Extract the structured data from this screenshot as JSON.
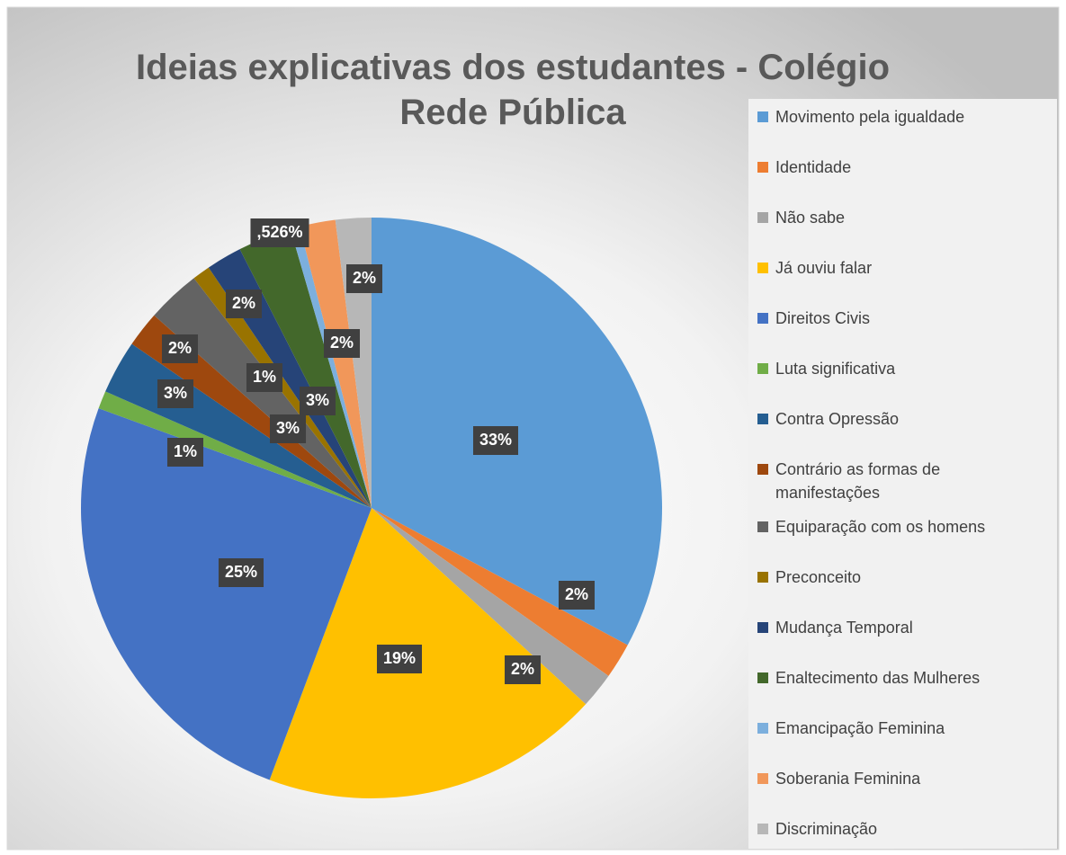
{
  "chart_data": {
    "type": "pie",
    "title": "Ideias explicativas dos estudantes - Colégio Rede Pública",
    "categories": [
      "Movimento pela igualdade",
      "Identidade",
      "Não sabe",
      "Já ouviu falar",
      "Direitos Civis",
      "Luta significativa",
      "Contra Opressão",
      "Contrário as formas de manifestações",
      "Equiparação com os homens",
      "Preconceito",
      "Mudança Temporal",
      "Enaltecimento das Mulheres",
      "Emancipação Feminina",
      "Soberania Feminina",
      "Discriminação"
    ],
    "values": [
      33,
      2,
      2,
      19,
      25,
      1,
      3,
      2,
      3,
      1,
      2,
      3,
      0.526,
      2,
      2
    ],
    "value_labels": [
      "33%",
      "2%",
      "2%",
      "19%",
      "25%",
      "1%",
      "3%",
      "2%",
      "3%",
      "1%",
      "2%",
      "3%",
      ",526%",
      "2%",
      "2%"
    ],
    "colors": [
      "#5b9bd5",
      "#ed7d31",
      "#a5a5a5",
      "#ffc000",
      "#4472c4",
      "#70ad47",
      "#255e91",
      "#9e480e",
      "#636363",
      "#997300",
      "#264478",
      "#43682b",
      "#7cafdd",
      "#f1975a",
      "#b7b7b7"
    ],
    "legend": "right"
  }
}
